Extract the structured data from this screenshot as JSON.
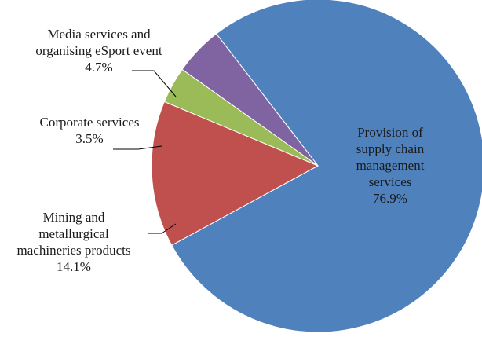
{
  "chart_data": {
    "type": "pie",
    "slices": [
      {
        "label_lines": [
          "Provision of",
          "supply chain",
          "management",
          "services"
        ],
        "value_label": "76.9%",
        "value": 76.9,
        "color": "#4f81bd"
      },
      {
        "label_lines": [
          "Mining and",
          "metallurgical",
          "machineries products"
        ],
        "value_label": "14.1%",
        "value": 14.1,
        "color": "#c0504d"
      },
      {
        "label_lines": [
          "Corporate services"
        ],
        "value_label": "3.5%",
        "value": 3.5,
        "color": "#9bbb59"
      },
      {
        "label_lines": [
          "Media services and",
          "organising eSport event"
        ],
        "value_label": "4.7%",
        "value": 4.7,
        "color": "#8064a2"
      }
    ]
  }
}
